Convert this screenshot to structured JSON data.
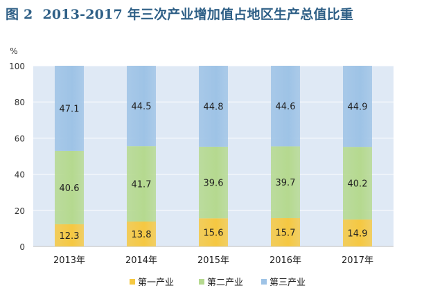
{
  "figure": {
    "label": "图 2",
    "title": "2013-2017 年三次产业增加值占地区生产总值比重"
  },
  "chart_data": {
    "type": "bar",
    "stacked": true,
    "categories": [
      "2013年",
      "2014年",
      "2015年",
      "2016年",
      "2017年"
    ],
    "series": [
      {
        "name": "第一产业",
        "color": "#f5c842",
        "values": [
          12.3,
          13.8,
          15.6,
          15.7,
          14.9
        ]
      },
      {
        "name": "第二产业",
        "color": "#b5d98f",
        "values": [
          40.6,
          41.7,
          39.6,
          39.7,
          40.2
        ]
      },
      {
        "name": "第三产业",
        "color": "#9ec3e6",
        "values": [
          47.1,
          44.5,
          44.8,
          44.6,
          44.9
        ]
      }
    ],
    "ylim": [
      0,
      100
    ],
    "yticks": [
      0,
      20,
      40,
      60,
      80,
      100
    ],
    "yunit": "%",
    "legend_position": "bottom",
    "plot_background": "#dfe9f5"
  }
}
